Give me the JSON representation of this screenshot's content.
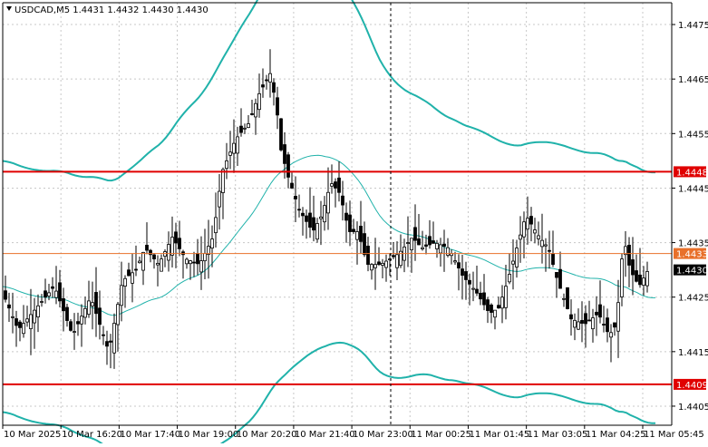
{
  "header": {
    "symbol_info": "USDCAD,M5  1.4431 1.4432 1.4430 1.4430"
  },
  "colors": {
    "background": "#ffffff",
    "candle": "#000000",
    "bollinger_bands": "#20b2aa",
    "moving_average": "#20b2aa",
    "support_resistance": "#e00000",
    "level_1433": "#e8702a",
    "price_tag_bg": "#000000",
    "level_tag_bg": "#e00000",
    "level_tag_orange_bg": "#e8702a",
    "grid": "#c8c8c8"
  },
  "chart_data": {
    "type": "candlestick",
    "title": "USDCAD,M5  1.4431 1.4432 1.4430 1.4430",
    "ylim": [
      1.44015,
      1.4479
    ],
    "y_ticks": [
      "1.4475",
      "1.4465",
      "1.4455",
      "1.4445",
      "1.4435",
      "1.4425",
      "1.4415",
      "1.4405"
    ],
    "x_ticks": [
      "10 Mar 2025",
      "10 Mar 16:20",
      "10 Mar 17:40",
      "10 Mar 19:00",
      "10 Mar 20:20",
      "10 Mar 21:40",
      "10 Mar 23:00",
      "11 Mar 00:25",
      "11 Mar 01:45",
      "11 Mar 03:05",
      "11 Mar 04:25",
      "11 Mar 05:45"
    ],
    "grid": true,
    "horizontal_levels": [
      {
        "price": 1.4448,
        "label": "1.4448",
        "color": "#e00000"
      },
      {
        "price": 1.4433,
        "label": "1.4433",
        "color": "#e8702a"
      },
      {
        "price": 1.4409,
        "label": "1.4409",
        "color": "#e00000"
      }
    ],
    "current_price": {
      "price": 1.443,
      "label": "1.4430"
    },
    "indicators": [
      "Bollinger Bands",
      "Moving Average"
    ]
  }
}
